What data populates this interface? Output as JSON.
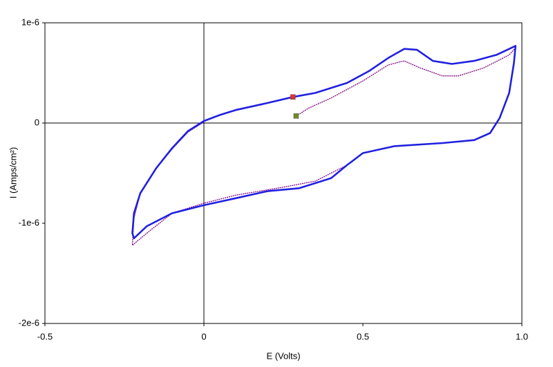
{
  "chart_data": {
    "type": "line",
    "xlabel": "E (Volts)",
    "ylabel": "I (Amps/cm²)",
    "xlim": [
      -0.5,
      1
    ],
    "xticks": [
      -0.5,
      0,
      0.5,
      {
        "value": 1,
        "label": "1.0"
      }
    ],
    "ylim": [
      -2e-06,
      1e-06
    ],
    "yticks": [
      {
        "value": 1e-06,
        "label": "1e-6"
      },
      0,
      {
        "value": -1e-06,
        "label": "-1e-6"
      },
      {
        "value": -2e-06,
        "label": "-2e-6"
      }
    ],
    "zero_lines": true,
    "series": [
      {
        "color": "#800080",
        "x": [
          0.29,
          0.33,
          0.4,
          0.5,
          0.58,
          0.63,
          0.68,
          0.75,
          0.8,
          0.88,
          0.96,
          0.98,
          0.975,
          0.96,
          0.93,
          0.9,
          0.85,
          0.75,
          0.6,
          0.5,
          0.45,
          0.35,
          0.25,
          0.1,
          0.0,
          -0.1,
          -0.18,
          -0.225,
          -0.22,
          -0.2,
          -0.15,
          -0.1,
          -0.05,
          0.0
        ],
        "values": [
          7e-08,
          1.5e-07,
          2.5e-07,
          4.2e-07,
          5.8e-07,
          6.2e-07,
          5.5e-07,
          4.7e-07,
          4.7e-07,
          5.5e-07,
          6.8e-07,
          7.5e-07,
          6e-07,
          3e-07,
          5e-08,
          -1e-07,
          -1.7e-07,
          -2e-07,
          -2.3e-07,
          -3e-07,
          -4.2e-07,
          -5.8e-07,
          -6.4e-07,
          -7.2e-07,
          -8e-07,
          -9e-07,
          -1.1e-06,
          -1.22e-06,
          -9.5e-07,
          -7e-07,
          -4.5e-07,
          -2.6e-07,
          -9e-08,
          1e-08
        ]
      },
      {
        "color": "#2020e0",
        "x": [
          0.28,
          0.35,
          0.45,
          0.52,
          0.58,
          0.63,
          0.67,
          0.72,
          0.78,
          0.85,
          0.92,
          0.98,
          0.975,
          0.96,
          0.93,
          0.9,
          0.85,
          0.75,
          0.6,
          0.5,
          0.45,
          0.4,
          0.3,
          0.2,
          0.1,
          0.0,
          -0.1,
          -0.18,
          -0.22,
          -0.225,
          -0.22,
          -0.2,
          -0.15,
          -0.1,
          -0.05,
          0.0,
          0.05,
          0.1,
          0.2,
          0.28
        ],
        "values": [
          2.6e-07,
          3e-07,
          4e-07,
          5.2e-07,
          6.5e-07,
          7.4e-07,
          7.3e-07,
          6.2e-07,
          5.9e-07,
          6.2e-07,
          6.8e-07,
          7.7e-07,
          6e-07,
          3e-07,
          5e-08,
          -1e-07,
          -1.7e-07,
          -2e-07,
          -2.3e-07,
          -3e-07,
          -4.2e-07,
          -5.5e-07,
          -6.5e-07,
          -6.8e-07,
          -7.5e-07,
          -8.2e-07,
          -9e-07,
          -1.03e-06,
          -1.15e-06,
          -1.1e-06,
          -9e-07,
          -7e-07,
          -4.5e-07,
          -2.5e-07,
          -8e-08,
          2e-08,
          8e-08,
          1.3e-07,
          2e-07,
          2.6e-07
        ]
      }
    ],
    "points": [
      {
        "x": 0.28,
        "y": 2.6e-07,
        "color": "#e03030"
      },
      {
        "x": 0.29,
        "y": 7e-08,
        "color": "#6b8e23"
      }
    ]
  }
}
